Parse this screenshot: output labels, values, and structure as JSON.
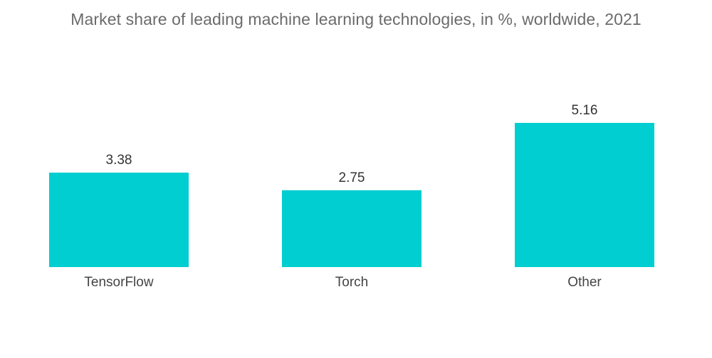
{
  "chart_data": {
    "type": "bar",
    "title": "Market share of leading machine learning technologies, in %, worldwide, 2021",
    "categories": [
      "TensorFlow",
      "Torch",
      "Other"
    ],
    "values": [
      3.38,
      2.75,
      5.16
    ],
    "value_labels": [
      "3.38",
      "2.75",
      "5.16"
    ],
    "xlabel": "",
    "ylabel": "",
    "ylim": [
      0,
      5.16
    ],
    "grid": false,
    "legend": "none",
    "colors": {
      "bar": "#00ced1",
      "title": "#6b6b6b",
      "label": "#333333",
      "category": "#444444"
    }
  }
}
